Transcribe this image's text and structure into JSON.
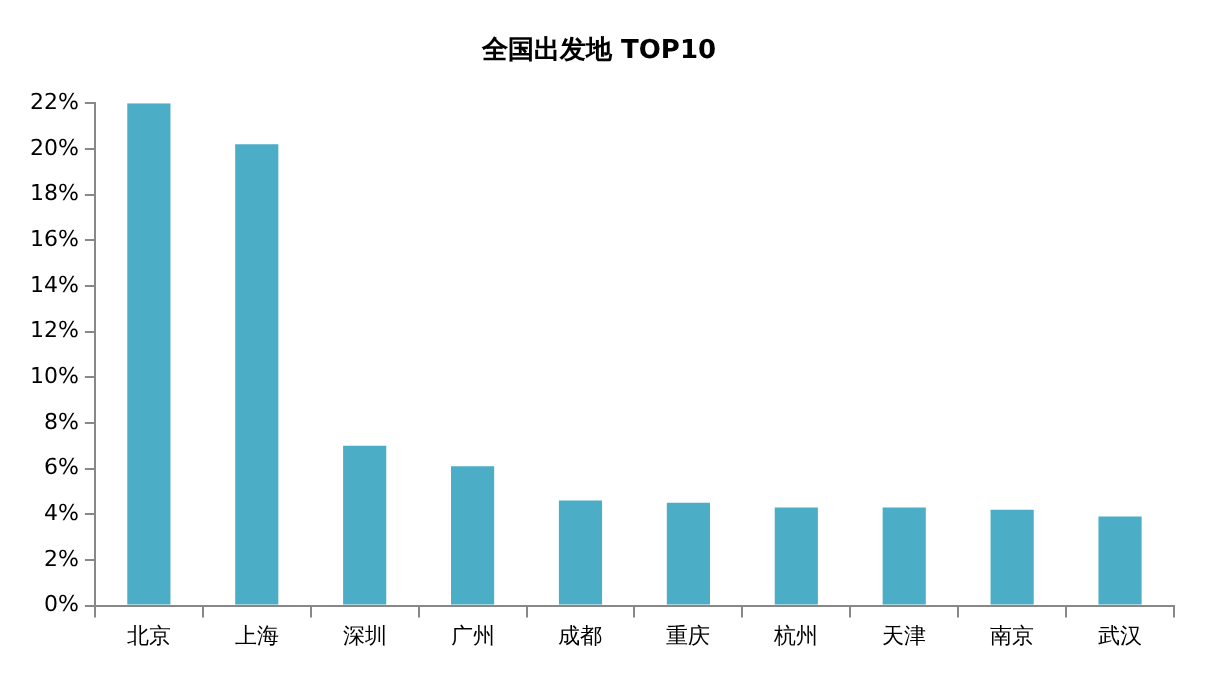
{
  "chart_data": {
    "type": "bar",
    "title": "全国出发地 TOP10",
    "categories": [
      "北京",
      "上海",
      "深圳",
      "广州",
      "成都",
      "重庆",
      "杭州",
      "天津",
      "南京",
      "武汉"
    ],
    "values": [
      22.0,
      20.2,
      7.0,
      6.1,
      4.6,
      4.5,
      4.3,
      4.3,
      4.2,
      3.9
    ],
    "color": "#4badc6",
    "ylim": [
      0,
      22
    ],
    "yticks": [
      {
        "value": 0,
        "label": "0%"
      },
      {
        "value": 2,
        "label": "2%"
      },
      {
        "value": 4,
        "label": "4%"
      },
      {
        "value": 6,
        "label": "6%"
      },
      {
        "value": 8,
        "label": "8%"
      },
      {
        "value": 10,
        "label": "10%"
      },
      {
        "value": 12,
        "label": "12%"
      },
      {
        "value": 14,
        "label": "14%"
      },
      {
        "value": 16,
        "label": "16%"
      },
      {
        "value": 18,
        "label": "18%"
      },
      {
        "value": 20,
        "label": "20%"
      },
      {
        "value": 22,
        "label": "22%"
      }
    ],
    "grid": false,
    "legend": false
  }
}
